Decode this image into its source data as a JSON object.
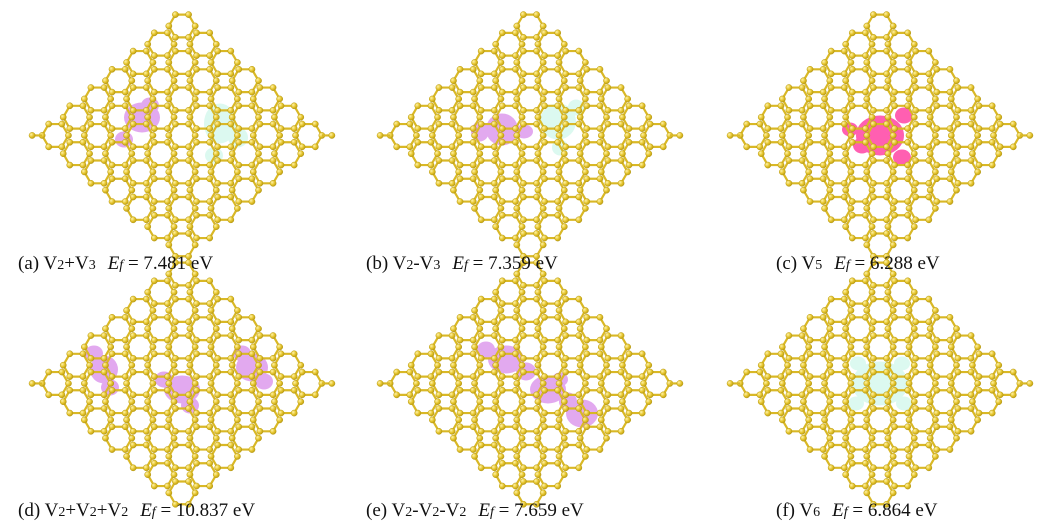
{
  "colors": {
    "atom": "#e6c52e",
    "atom_edge": "#b89a12",
    "bond": "#d9b826",
    "vacancy_violet": "#e2a9ef",
    "vacancy_mint": "#dcf9f0",
    "vacancy_magenta": "#ff5fb1"
  },
  "panels": [
    {
      "id": "a",
      "label": "(a)",
      "parts": [
        [
          "V",
          "2"
        ],
        [
          "+V",
          "3"
        ]
      ],
      "ef_symbol": "E",
      "ef_sub": "f",
      "ef_value": "= 7.481 eV",
      "vacancies": [
        {
          "color": "vacancy_violet",
          "shape": "two-lobe"
        },
        {
          "color": "vacancy_mint",
          "shape": "three-lobe"
        }
      ]
    },
    {
      "id": "b",
      "label": "(b)",
      "parts": [
        [
          "V",
          "2"
        ],
        [
          "-V",
          "3"
        ]
      ],
      "ef_symbol": "E",
      "ef_sub": "f",
      "ef_value": "= 7.359 eV",
      "vacancies": [
        {
          "color": "vacancy_violet",
          "shape": "two-lobe"
        },
        {
          "color": "vacancy_mint",
          "shape": "three-lobe"
        }
      ]
    },
    {
      "id": "c",
      "label": "(c)",
      "parts": [
        [
          "V",
          "5"
        ]
      ],
      "ef_symbol": "E",
      "ef_sub": "f",
      "ef_value": "= 6.288 eV",
      "vacancies": [
        {
          "color": "vacancy_magenta",
          "shape": "five-lobe"
        }
      ]
    },
    {
      "id": "d",
      "label": "(d)",
      "parts": [
        [
          "V",
          "2"
        ],
        [
          "+V",
          "2"
        ],
        [
          "+V",
          "2"
        ]
      ],
      "ef_symbol": "E",
      "ef_sub": "f",
      "ef_value": "= 10.837 eV",
      "vacancies": [
        {
          "color": "vacancy_violet",
          "shape": "two-lobe"
        },
        {
          "color": "vacancy_violet",
          "shape": "two-lobe"
        },
        {
          "color": "vacancy_violet",
          "shape": "two-lobe"
        }
      ]
    },
    {
      "id": "e",
      "label": "(e)",
      "parts": [
        [
          "V",
          "2"
        ],
        [
          "-V",
          "2"
        ],
        [
          "-V",
          "2"
        ]
      ],
      "ef_symbol": "E",
      "ef_sub": "f",
      "ef_value": "= 7.659 eV",
      "vacancies": [
        {
          "color": "vacancy_violet",
          "shape": "chain"
        }
      ]
    },
    {
      "id": "f",
      "label": "(f)",
      "parts": [
        [
          "V",
          "6"
        ]
      ],
      "ef_symbol": "E",
      "ef_sub": "f",
      "ef_value": "= 6.864 eV",
      "vacancies": [
        {
          "color": "vacancy_mint",
          "shape": "six-lobe"
        }
      ]
    }
  ]
}
